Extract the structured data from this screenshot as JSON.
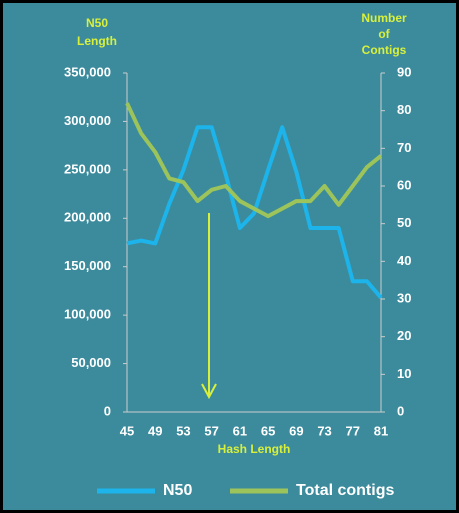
{
  "chart_data": {
    "type": "line",
    "y_label": [
      "N50",
      "Length"
    ],
    "y2_label": [
      "Number",
      "of",
      "Contigs"
    ],
    "x_label": "Hash Length",
    "categories": [
      45,
      null,
      49,
      null,
      53,
      null,
      57,
      null,
      61,
      null,
      65,
      null,
      69,
      null,
      73,
      null,
      77,
      null,
      81
    ],
    "ylim": [
      0,
      350000
    ],
    "yticks": [
      {
        "value": 0,
        "label": "0"
      },
      {
        "value": 50000,
        "label": "50,000"
      },
      {
        "value": 100000,
        "label": "100,000"
      },
      {
        "value": 150000,
        "label": "150,000"
      },
      {
        "value": 200000,
        "label": "200,000"
      },
      {
        "value": 250000,
        "label": "250,000"
      },
      {
        "value": 300000,
        "label": "300,000"
      },
      {
        "value": 350000,
        "label": "350,000"
      }
    ],
    "y2lim": [
      0,
      90
    ],
    "y2ticks": [
      0,
      10,
      20,
      30,
      40,
      50,
      60,
      70,
      80,
      90
    ],
    "legend": "bottom",
    "series": [
      {
        "name": "N50",
        "color": "#1cb4ea",
        "values": [
          174000,
          177000,
          174000,
          215000,
          250000,
          294000,
          294000,
          245000,
          190000,
          205000,
          250000,
          294000,
          248000,
          190000,
          190000,
          190000,
          135000,
          135000,
          118000
        ]
      },
      {
        "name": "Total contigs",
        "color": "#9cc45a",
        "axis": "y2",
        "values": [
          82,
          74,
          69,
          62,
          61,
          56,
          59,
          60,
          56,
          54,
          52,
          54,
          56,
          56,
          60,
          55,
          60,
          65,
          68
        ]
      }
    ]
  }
}
